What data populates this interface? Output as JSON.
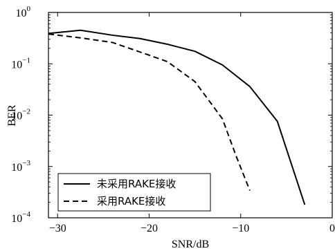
{
  "chart_data": {
    "type": "line",
    "title": "",
    "xlabel": "SNR/dB",
    "ylabel": "BER",
    "xlim": [
      -31,
      0
    ],
    "ylim": [
      0.0001,
      1
    ],
    "yscale": "log",
    "grid": false,
    "legend_position": "bottom-left",
    "x_ticks": [
      {
        "value": -30,
        "label": "−30"
      },
      {
        "value": -20,
        "label": "−20"
      },
      {
        "value": -10,
        "label": "−10"
      },
      {
        "value": 0,
        "label": "0"
      }
    ],
    "y_ticks": [
      {
        "value": 1,
        "mantissa": "10",
        "exp": "0"
      },
      {
        "value": 0.1,
        "mantissa": "10",
        "exp": "−1"
      },
      {
        "value": 0.01,
        "mantissa": "10",
        "exp": "−2"
      },
      {
        "value": 0.001,
        "mantissa": "10",
        "exp": "−3"
      },
      {
        "value": 0.0001,
        "mantissa": "10",
        "exp": "−4"
      }
    ],
    "series": [
      {
        "name": "未采用RAKE接收",
        "style": "solid",
        "color": "#000000",
        "points": [
          [
            -31,
            0.39
          ],
          [
            -27.5,
            0.45
          ],
          [
            -24,
            0.36
          ],
          [
            -21,
            0.31
          ],
          [
            -18,
            0.24
          ],
          [
            -15,
            0.175
          ],
          [
            -12,
            0.095
          ],
          [
            -9,
            0.036
          ],
          [
            -6,
            0.0076
          ],
          [
            -3,
            0.00018
          ]
        ]
      },
      {
        "name": "采用RAKE接收",
        "style": "dashed",
        "color": "#000000",
        "points": [
          [
            -31,
            0.38
          ],
          [
            -27.5,
            0.32
          ],
          [
            -24,
            0.26
          ],
          [
            -21,
            0.17
          ],
          [
            -18,
            0.11
          ],
          [
            -15,
            0.045
          ],
          [
            -12,
            0.0085
          ],
          [
            -10.5,
            0.0016
          ],
          [
            -9,
            0.00034
          ]
        ]
      }
    ]
  }
}
